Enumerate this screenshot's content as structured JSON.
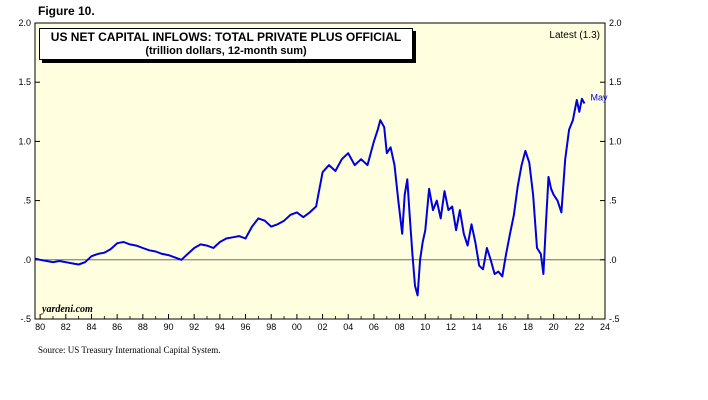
{
  "figure_label": "Figure 10.",
  "source": "Source: US Treasury International Capital System.",
  "watermark": "yardeni.com",
  "chart_data": {
    "type": "line",
    "title": "US NET CAPITAL INFLOWS: TOTAL PRIVATE PLUS OFFICIAL",
    "subtitle": "(trillion dollars, 12-month sum)",
    "annotation_latest": "Latest (1.3)",
    "end_label": "May",
    "xlim": [
      1979.6,
      2024.0
    ],
    "ylim": [
      -0.5,
      2.0
    ],
    "y_ticks": [
      -0.5,
      0.0,
      0.5,
      1.0,
      1.5,
      2.0
    ],
    "y_tick_labels": [
      "-.5",
      ".0",
      ".5",
      "1.0",
      "1.5",
      "2.0"
    ],
    "x_ticks": [
      1980,
      1982,
      1984,
      1986,
      1988,
      1990,
      1992,
      1994,
      1996,
      1998,
      2000,
      2002,
      2004,
      2006,
      2008,
      2010,
      2012,
      2014,
      2016,
      2018,
      2020,
      2022,
      2024
    ],
    "x_tick_labels": [
      "80",
      "82",
      "84",
      "86",
      "88",
      "90",
      "92",
      "94",
      "96",
      "98",
      "00",
      "02",
      "04",
      "06",
      "08",
      "10",
      "12",
      "14",
      "16",
      "18",
      "20",
      "22",
      "24"
    ],
    "grid": false,
    "zero_line": true,
    "background": "#ffffe0",
    "line_color": "#0000dd",
    "series": [
      {
        "x": [
          1979.6,
          1980.0,
          1980.5,
          1981.0,
          1981.5,
          1982.0,
          1982.5,
          1983.0,
          1983.5,
          1984.0,
          1984.5,
          1985.0,
          1985.5,
          1986.0,
          1986.5,
          1987.0,
          1987.5,
          1988.0,
          1988.5,
          1989.0,
          1989.5,
          1990.0,
          1990.5,
          1991.0,
          1991.5,
          1992.0,
          1992.5,
          1993.0,
          1993.5,
          1994.0,
          1994.5,
          1995.0,
          1995.5,
          1996.0,
          1996.5,
          1997.0,
          1997.5,
          1998.0,
          1998.5,
          1999.0,
          1999.5,
          2000.0,
          2000.5,
          2001.0,
          2001.5,
          2002.0,
          2002.5,
          2003.0,
          2003.5,
          2004.0,
          2004.5,
          2005.0,
          2005.5,
          2006.0,
          2006.3,
          2006.5,
          2006.8,
          2007.0,
          2007.3,
          2007.6,
          2007.9,
          2008.2,
          2008.4,
          2008.6,
          2008.8,
          2009.0,
          2009.2,
          2009.4,
          2009.6,
          2009.8,
          2010.0,
          2010.3,
          2010.6,
          2010.9,
          2011.2,
          2011.5,
          2011.8,
          2012.1,
          2012.4,
          2012.7,
          2013.0,
          2013.3,
          2013.6,
          2013.9,
          2014.2,
          2014.5,
          2014.8,
          2015.1,
          2015.4,
          2015.7,
          2016.0,
          2016.3,
          2016.6,
          2016.9,
          2017.2,
          2017.5,
          2017.8,
          2018.1,
          2018.4,
          2018.7,
          2019.0,
          2019.2,
          2019.4,
          2019.6,
          2019.8,
          2020.0,
          2020.3,
          2020.6,
          2020.9,
          2021.2,
          2021.5,
          2021.8,
          2022.0,
          2022.2,
          2022.4
        ],
        "values": [
          0.01,
          0.0,
          -0.01,
          -0.02,
          -0.01,
          -0.02,
          -0.03,
          -0.04,
          -0.02,
          0.03,
          0.05,
          0.06,
          0.09,
          0.14,
          0.15,
          0.13,
          0.12,
          0.1,
          0.08,
          0.07,
          0.05,
          0.04,
          0.02,
          0.0,
          0.05,
          0.1,
          0.13,
          0.12,
          0.1,
          0.15,
          0.18,
          0.19,
          0.2,
          0.18,
          0.28,
          0.35,
          0.33,
          0.28,
          0.3,
          0.33,
          0.38,
          0.4,
          0.36,
          0.4,
          0.45,
          0.74,
          0.8,
          0.75,
          0.85,
          0.9,
          0.8,
          0.85,
          0.8,
          1.0,
          1.1,
          1.18,
          1.12,
          0.9,
          0.95,
          0.8,
          0.5,
          0.22,
          0.55,
          0.68,
          0.35,
          0.05,
          -0.22,
          -0.3,
          0.0,
          0.15,
          0.25,
          0.6,
          0.42,
          0.5,
          0.35,
          0.58,
          0.42,
          0.45,
          0.25,
          0.42,
          0.22,
          0.12,
          0.3,
          0.15,
          -0.05,
          -0.08,
          0.1,
          0.0,
          -0.12,
          -0.1,
          -0.14,
          0.05,
          0.22,
          0.38,
          0.62,
          0.8,
          0.92,
          0.82,
          0.55,
          0.1,
          0.05,
          -0.12,
          0.3,
          0.7,
          0.6,
          0.55,
          0.5,
          0.4,
          0.85,
          1.1,
          1.18,
          1.35,
          1.25,
          1.36,
          1.32
        ]
      }
    ]
  }
}
